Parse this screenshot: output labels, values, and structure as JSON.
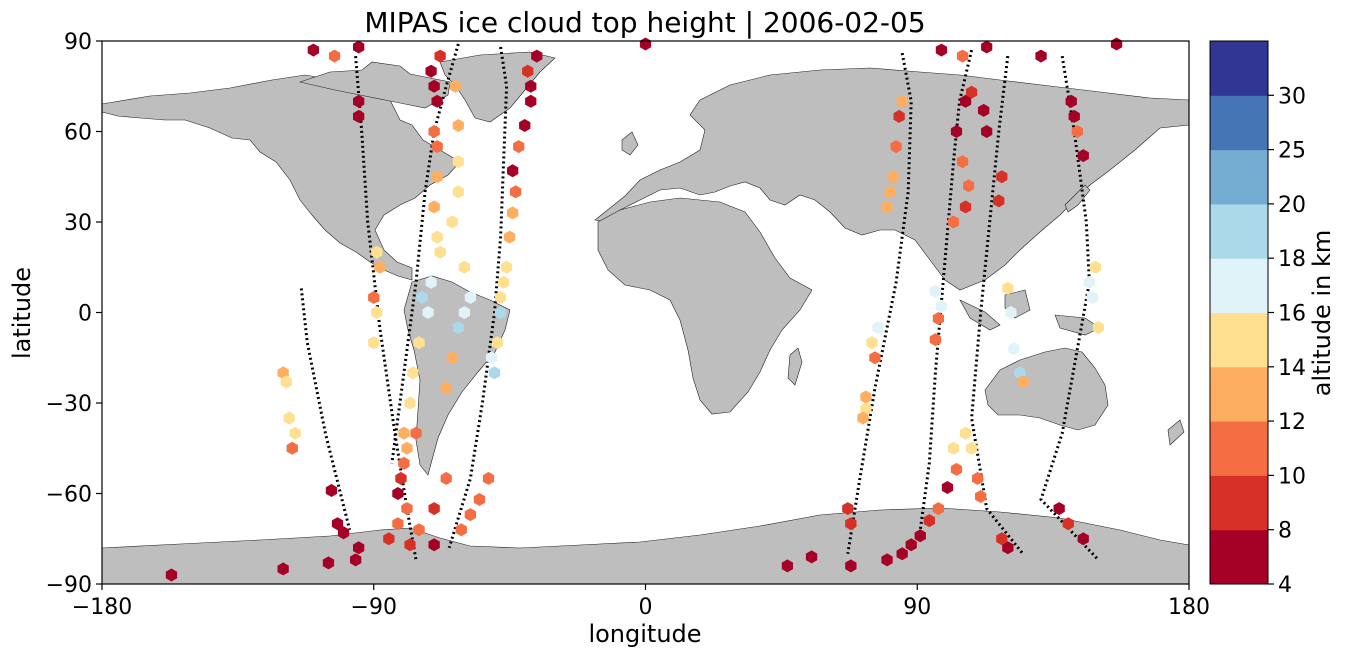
{
  "chart_data": {
    "type": "scatter",
    "title": "MIPAS ice cloud top height | 2006-02-05",
    "xlabel": "longitude",
    "ylabel": "latitude",
    "xlim": [
      -180,
      180
    ],
    "ylim": [
      -90,
      90
    ],
    "xticks": [
      -180,
      -90,
      0,
      90,
      180
    ],
    "yticks": [
      -90,
      -60,
      -30,
      0,
      30,
      60,
      90
    ],
    "grid": false,
    "colorbar": {
      "label": "altitude in km",
      "bounds": [
        4,
        8,
        10,
        12,
        14,
        16,
        18,
        20,
        25,
        30
      ],
      "colors": [
        "#a50026",
        "#d73027",
        "#f46d43",
        "#fdae61",
        "#fee090",
        "#e0f3f8",
        "#abd9e9",
        "#74add1",
        "#4575b4",
        "#313695"
      ]
    },
    "land_color": "#bebebe",
    "clear_sky_marker_color": "#000000",
    "series": [
      {
        "values": [
          {
            "lon": -120,
            "lat": -20,
            "alt": 12
          },
          {
            "lon": -119,
            "lat": -23,
            "alt": 14
          },
          {
            "lon": -118,
            "lat": -35,
            "alt": 14
          },
          {
            "lon": -116,
            "lat": -40,
            "alt": 15
          },
          {
            "lon": -117,
            "lat": -45,
            "alt": 11
          },
          {
            "lon": -104,
            "lat": -59,
            "alt": 5
          },
          {
            "lon": -102,
            "lat": -70,
            "alt": 5
          },
          {
            "lon": -100,
            "lat": -73,
            "alt": 5
          },
          {
            "lon": -95,
            "lat": -78,
            "alt": 5
          },
          {
            "lon": -85,
            "lat": -75,
            "alt": 9
          },
          {
            "lon": -82,
            "lat": -70,
            "alt": 11
          },
          {
            "lon": -79,
            "lat": -65,
            "alt": 11
          },
          {
            "lon": -82,
            "lat": -60,
            "alt": 5
          },
          {
            "lon": -81,
            "lat": -55,
            "alt": 9
          },
          {
            "lon": -80,
            "lat": -50,
            "alt": 11
          },
          {
            "lon": -79,
            "lat": -45,
            "alt": 13
          },
          {
            "lon": -76,
            "lat": -40,
            "alt": 11
          },
          {
            "lon": -80,
            "lat": -40,
            "alt": 13
          },
          {
            "lon": -78,
            "lat": -30,
            "alt": 14
          },
          {
            "lon": -77,
            "lat": -20,
            "alt": 14
          },
          {
            "lon": -75,
            "lat": -10,
            "alt": 15
          },
          {
            "lon": -72,
            "lat": 0,
            "alt": 17
          },
          {
            "lon": -74,
            "lat": 5,
            "alt": 18
          },
          {
            "lon": -71,
            "lat": 10,
            "alt": 16
          },
          {
            "lon": -68,
            "lat": 20,
            "alt": 14
          },
          {
            "lon": -69,
            "lat": 25,
            "alt": 15
          },
          {
            "lon": -70,
            "lat": 35,
            "alt": 13
          },
          {
            "lon": -69,
            "lat": 45,
            "alt": 12
          },
          {
            "lon": -69,
            "lat": 55,
            "alt": 11
          },
          {
            "lon": -70,
            "lat": 60,
            "alt": 11
          },
          {
            "lon": -69,
            "lat": 70,
            "alt": 5
          },
          {
            "lon": -70,
            "lat": 75,
            "alt": 6
          },
          {
            "lon": -71,
            "lat": 80,
            "alt": 5
          },
          {
            "lon": -68,
            "lat": 85,
            "alt": 9
          },
          {
            "lon": -63,
            "lat": 75,
            "alt": 13
          },
          {
            "lon": -62,
            "lat": 62,
            "alt": 13
          },
          {
            "lon": -62,
            "lat": 50,
            "alt": 14
          },
          {
            "lon": -62,
            "lat": 40,
            "alt": 14
          },
          {
            "lon": -64,
            "lat": 30,
            "alt": 15
          },
          {
            "lon": -60,
            "lat": 15,
            "alt": 15
          },
          {
            "lon": -58,
            "lat": 5,
            "alt": 17
          },
          {
            "lon": -60,
            "lat": 0,
            "alt": 17
          },
          {
            "lon": -62,
            "lat": -5,
            "alt": 18
          },
          {
            "lon": -64,
            "lat": -15,
            "alt": 13
          },
          {
            "lon": -66,
            "lat": -25,
            "alt": 12
          },
          {
            "lon": -66,
            "lat": -55,
            "alt": 11
          },
          {
            "lon": -70,
            "lat": -65,
            "alt": 9
          },
          {
            "lon": -75,
            "lat": -72,
            "alt": 10
          },
          {
            "lon": -78,
            "lat": -77,
            "alt": 9
          },
          {
            "lon": -70,
            "lat": -77,
            "alt": 5
          },
          {
            "lon": -52,
            "lat": -55,
            "alt": 10
          },
          {
            "lon": -55,
            "lat": -62,
            "alt": 11
          },
          {
            "lon": -58,
            "lat": -67,
            "alt": 11
          },
          {
            "lon": -61,
            "lat": -72,
            "alt": 10
          },
          {
            "lon": -51,
            "lat": -15,
            "alt": 17
          },
          {
            "lon": -50,
            "lat": -20,
            "alt": 18
          },
          {
            "lon": -49,
            "lat": -10,
            "alt": 15
          },
          {
            "lon": -48,
            "lat": 0,
            "alt": 19
          },
          {
            "lon": -48,
            "lat": 5,
            "alt": 15
          },
          {
            "lon": -47,
            "lat": 10,
            "alt": 14
          },
          {
            "lon": -46,
            "lat": 15,
            "alt": 15
          },
          {
            "lon": -45,
            "lat": 25,
            "alt": 13
          },
          {
            "lon": -44,
            "lat": 33,
            "alt": 13
          },
          {
            "lon": -43,
            "lat": 40,
            "alt": 11
          },
          {
            "lon": -44,
            "lat": 47,
            "alt": 5
          },
          {
            "lon": -42,
            "lat": 55,
            "alt": 10
          },
          {
            "lon": -40,
            "lat": 62,
            "alt": 7
          },
          {
            "lon": -38,
            "lat": 70,
            "alt": 5
          },
          {
            "lon": -39,
            "lat": 80,
            "alt": 9
          },
          {
            "lon": -38,
            "lat": 75,
            "alt": 6
          },
          {
            "lon": -36,
            "lat": 85,
            "alt": 5
          },
          {
            "lon": -90,
            "lat": 5,
            "alt": 11
          },
          {
            "lon": -88,
            "lat": 15,
            "alt": 13
          },
          {
            "lon": -89,
            "lat": 20,
            "alt": 14
          },
          {
            "lon": -90,
            "lat": -10,
            "alt": 15
          },
          {
            "lon": -89,
            "lat": 0,
            "alt": 14
          },
          {
            "lon": -95,
            "lat": 65,
            "alt": 5
          },
          {
            "lon": -95,
            "lat": 70,
            "alt": 5
          },
          {
            "lon": -95,
            "lat": 88,
            "alt": 5
          },
          {
            "lon": -110,
            "lat": 87,
            "alt": 5
          },
          {
            "lon": -103,
            "lat": 85,
            "alt": 10
          },
          {
            "lon": -157,
            "lat": -87,
            "alt": 5
          },
          {
            "lon": -120,
            "lat": -85,
            "alt": 5
          },
          {
            "lon": -105,
            "lat": -83,
            "alt": 5
          },
          {
            "lon": -96,
            "lat": -82,
            "alt": 5
          },
          {
            "lon": 0,
            "lat": 89,
            "alt": 5
          },
          {
            "lon": 98,
            "lat": 87,
            "alt": 5
          },
          {
            "lon": 105,
            "lat": 85,
            "alt": 10
          },
          {
            "lon": 113,
            "lat": 88,
            "alt": 5
          },
          {
            "lon": 131,
            "lat": 85,
            "alt": 5
          },
          {
            "lon": 156,
            "lat": 89,
            "alt": 5
          },
          {
            "lon": 84,
            "lat": 65,
            "alt": 9
          },
          {
            "lon": 85,
            "lat": 70,
            "alt": 12
          },
          {
            "lon": 83,
            "lat": 55,
            "alt": 11
          },
          {
            "lon": 82,
            "lat": 45,
            "alt": 12
          },
          {
            "lon": 81,
            "lat": 40,
            "alt": 13
          },
          {
            "lon": 80,
            "lat": 35,
            "alt": 13
          },
          {
            "lon": 77,
            "lat": -5,
            "alt": 17
          },
          {
            "lon": 75,
            "lat": -10,
            "alt": 14
          },
          {
            "lon": 76,
            "lat": -15,
            "alt": 11
          },
          {
            "lon": 73,
            "lat": -28,
            "alt": 13
          },
          {
            "lon": 73,
            "lat": -32,
            "alt": 14
          },
          {
            "lon": 72,
            "lat": -35,
            "alt": 13
          },
          {
            "lon": 67,
            "lat": -65,
            "alt": 9
          },
          {
            "lon": 68,
            "lat": -70,
            "alt": 9
          },
          {
            "lon": 68,
            "lat": -84,
            "alt": 5
          },
          {
            "lon": 47,
            "lat": -84,
            "alt": 5
          },
          {
            "lon": 55,
            "lat": -81,
            "alt": 5
          },
          {
            "lon": 80,
            "lat": -82,
            "alt": 5
          },
          {
            "lon": 85,
            "lat": -80,
            "alt": 5
          },
          {
            "lon": 88,
            "lat": -77,
            "alt": 5
          },
          {
            "lon": 91,
            "lat": -74,
            "alt": 5
          },
          {
            "lon": 94,
            "lat": -69,
            "alt": 9
          },
          {
            "lon": 97,
            "lat": -65,
            "alt": 10
          },
          {
            "lon": 100,
            "lat": -58,
            "alt": 5
          },
          {
            "lon": 103,
            "lat": -52,
            "alt": 11
          },
          {
            "lon": 102,
            "lat": -45,
            "alt": 14
          },
          {
            "lon": 106,
            "lat": -40,
            "alt": 15
          },
          {
            "lon": 108,
            "lat": -45,
            "alt": 15
          },
          {
            "lon": 110,
            "lat": -55,
            "alt": 11
          },
          {
            "lon": 111,
            "lat": -61,
            "alt": 11
          },
          {
            "lon": 96,
            "lat": 7,
            "alt": 17
          },
          {
            "lon": 98,
            "lat": 2,
            "alt": 17
          },
          {
            "lon": 97,
            "lat": -2,
            "alt": 11
          },
          {
            "lon": 96,
            "lat": -9,
            "alt": 11
          },
          {
            "lon": 103,
            "lat": 60,
            "alt": 5
          },
          {
            "lon": 106,
            "lat": 70,
            "alt": 5
          },
          {
            "lon": 108,
            "lat": 73,
            "alt": 9
          },
          {
            "lon": 105,
            "lat": 50,
            "alt": 11
          },
          {
            "lon": 107,
            "lat": 42,
            "alt": 11
          },
          {
            "lon": 106,
            "lat": 35,
            "alt": 9
          },
          {
            "lon": 102,
            "lat": 30,
            "alt": 11
          },
          {
            "lon": 112,
            "lat": 67,
            "alt": 5
          },
          {
            "lon": 113,
            "lat": 60,
            "alt": 5
          },
          {
            "lon": 118,
            "lat": 45,
            "alt": 9
          },
          {
            "lon": 117,
            "lat": 37,
            "alt": 9
          },
          {
            "lon": 120,
            "lat": 8,
            "alt": 15
          },
          {
            "lon": 121,
            "lat": 0,
            "alt": 17
          },
          {
            "lon": 122,
            "lat": -12,
            "alt": 17
          },
          {
            "lon": 124,
            "lat": -20,
            "alt": 18
          },
          {
            "lon": 125,
            "lat": -23,
            "alt": 13
          },
          {
            "lon": 120,
            "lat": -78,
            "alt": 5
          },
          {
            "lon": 118,
            "lat": -75,
            "alt": 9
          },
          {
            "lon": 137,
            "lat": -65,
            "alt": 5
          },
          {
            "lon": 140,
            "lat": -70,
            "alt": 9
          },
          {
            "lon": 145,
            "lat": -75,
            "alt": 5
          },
          {
            "lon": 145,
            "lat": 52,
            "alt": 5
          },
          {
            "lon": 143,
            "lat": 60,
            "alt": 10
          },
          {
            "lon": 141,
            "lat": 70,
            "alt": 5
          },
          {
            "lon": 142,
            "lat": 65,
            "alt": 5
          },
          {
            "lon": 149,
            "lat": 15,
            "alt": 15
          },
          {
            "lon": 147,
            "lat": 10,
            "alt": 17
          },
          {
            "lon": 148,
            "lat": 5,
            "alt": 17
          },
          {
            "lon": 150,
            "lat": -5,
            "alt": 15
          }
        ]
      }
    ],
    "clear_sky_tracks": [
      [
        [
          -114,
          8
        ],
        [
          -112,
          -10
        ],
        [
          -106,
          -40
        ],
        [
          -101,
          -60
        ],
        [
          -98,
          -72
        ]
      ],
      [
        [
          -96,
          85
        ],
        [
          -94,
          60
        ],
        [
          -92,
          30
        ],
        [
          -88,
          -5
        ],
        [
          -83,
          -40
        ],
        [
          -79,
          -65
        ],
        [
          -76,
          -82
        ]
      ],
      [
        [
          -62,
          89
        ],
        [
          -66,
          75
        ],
        [
          -70,
          60
        ],
        [
          -73,
          40
        ],
        [
          -76,
          10
        ],
        [
          -80,
          -20
        ],
        [
          -84,
          -50
        ]
      ],
      [
        [
          -48,
          88
        ],
        [
          -46,
          75
        ],
        [
          -47,
          50
        ],
        [
          -48,
          25
        ],
        [
          -50,
          0
        ],
        [
          -54,
          -30
        ],
        [
          -58,
          -55
        ],
        [
          -65,
          -78
        ]
      ],
      [
        [
          85,
          86
        ],
        [
          88,
          70
        ],
        [
          87,
          40
        ],
        [
          83,
          10
        ],
        [
          76,
          -25
        ],
        [
          71,
          -55
        ],
        [
          67,
          -80
        ]
      ],
      [
        [
          108,
          87
        ],
        [
          104,
          70
        ],
        [
          102,
          50
        ],
        [
          99,
          15
        ],
        [
          96,
          -20
        ],
        [
          94,
          -50
        ],
        [
          91,
          -72
        ]
      ],
      [
        [
          120,
          85
        ],
        [
          117,
          60
        ],
        [
          114,
          30
        ],
        [
          111,
          0
        ],
        [
          108,
          -35
        ],
        [
          113,
          -65
        ],
        [
          125,
          -80
        ]
      ],
      [
        [
          138,
          85
        ],
        [
          142,
          60
        ],
        [
          146,
          30
        ],
        [
          147,
          10
        ],
        [
          138,
          -40
        ],
        [
          131,
          -62
        ],
        [
          150,
          -82
        ]
      ]
    ]
  }
}
